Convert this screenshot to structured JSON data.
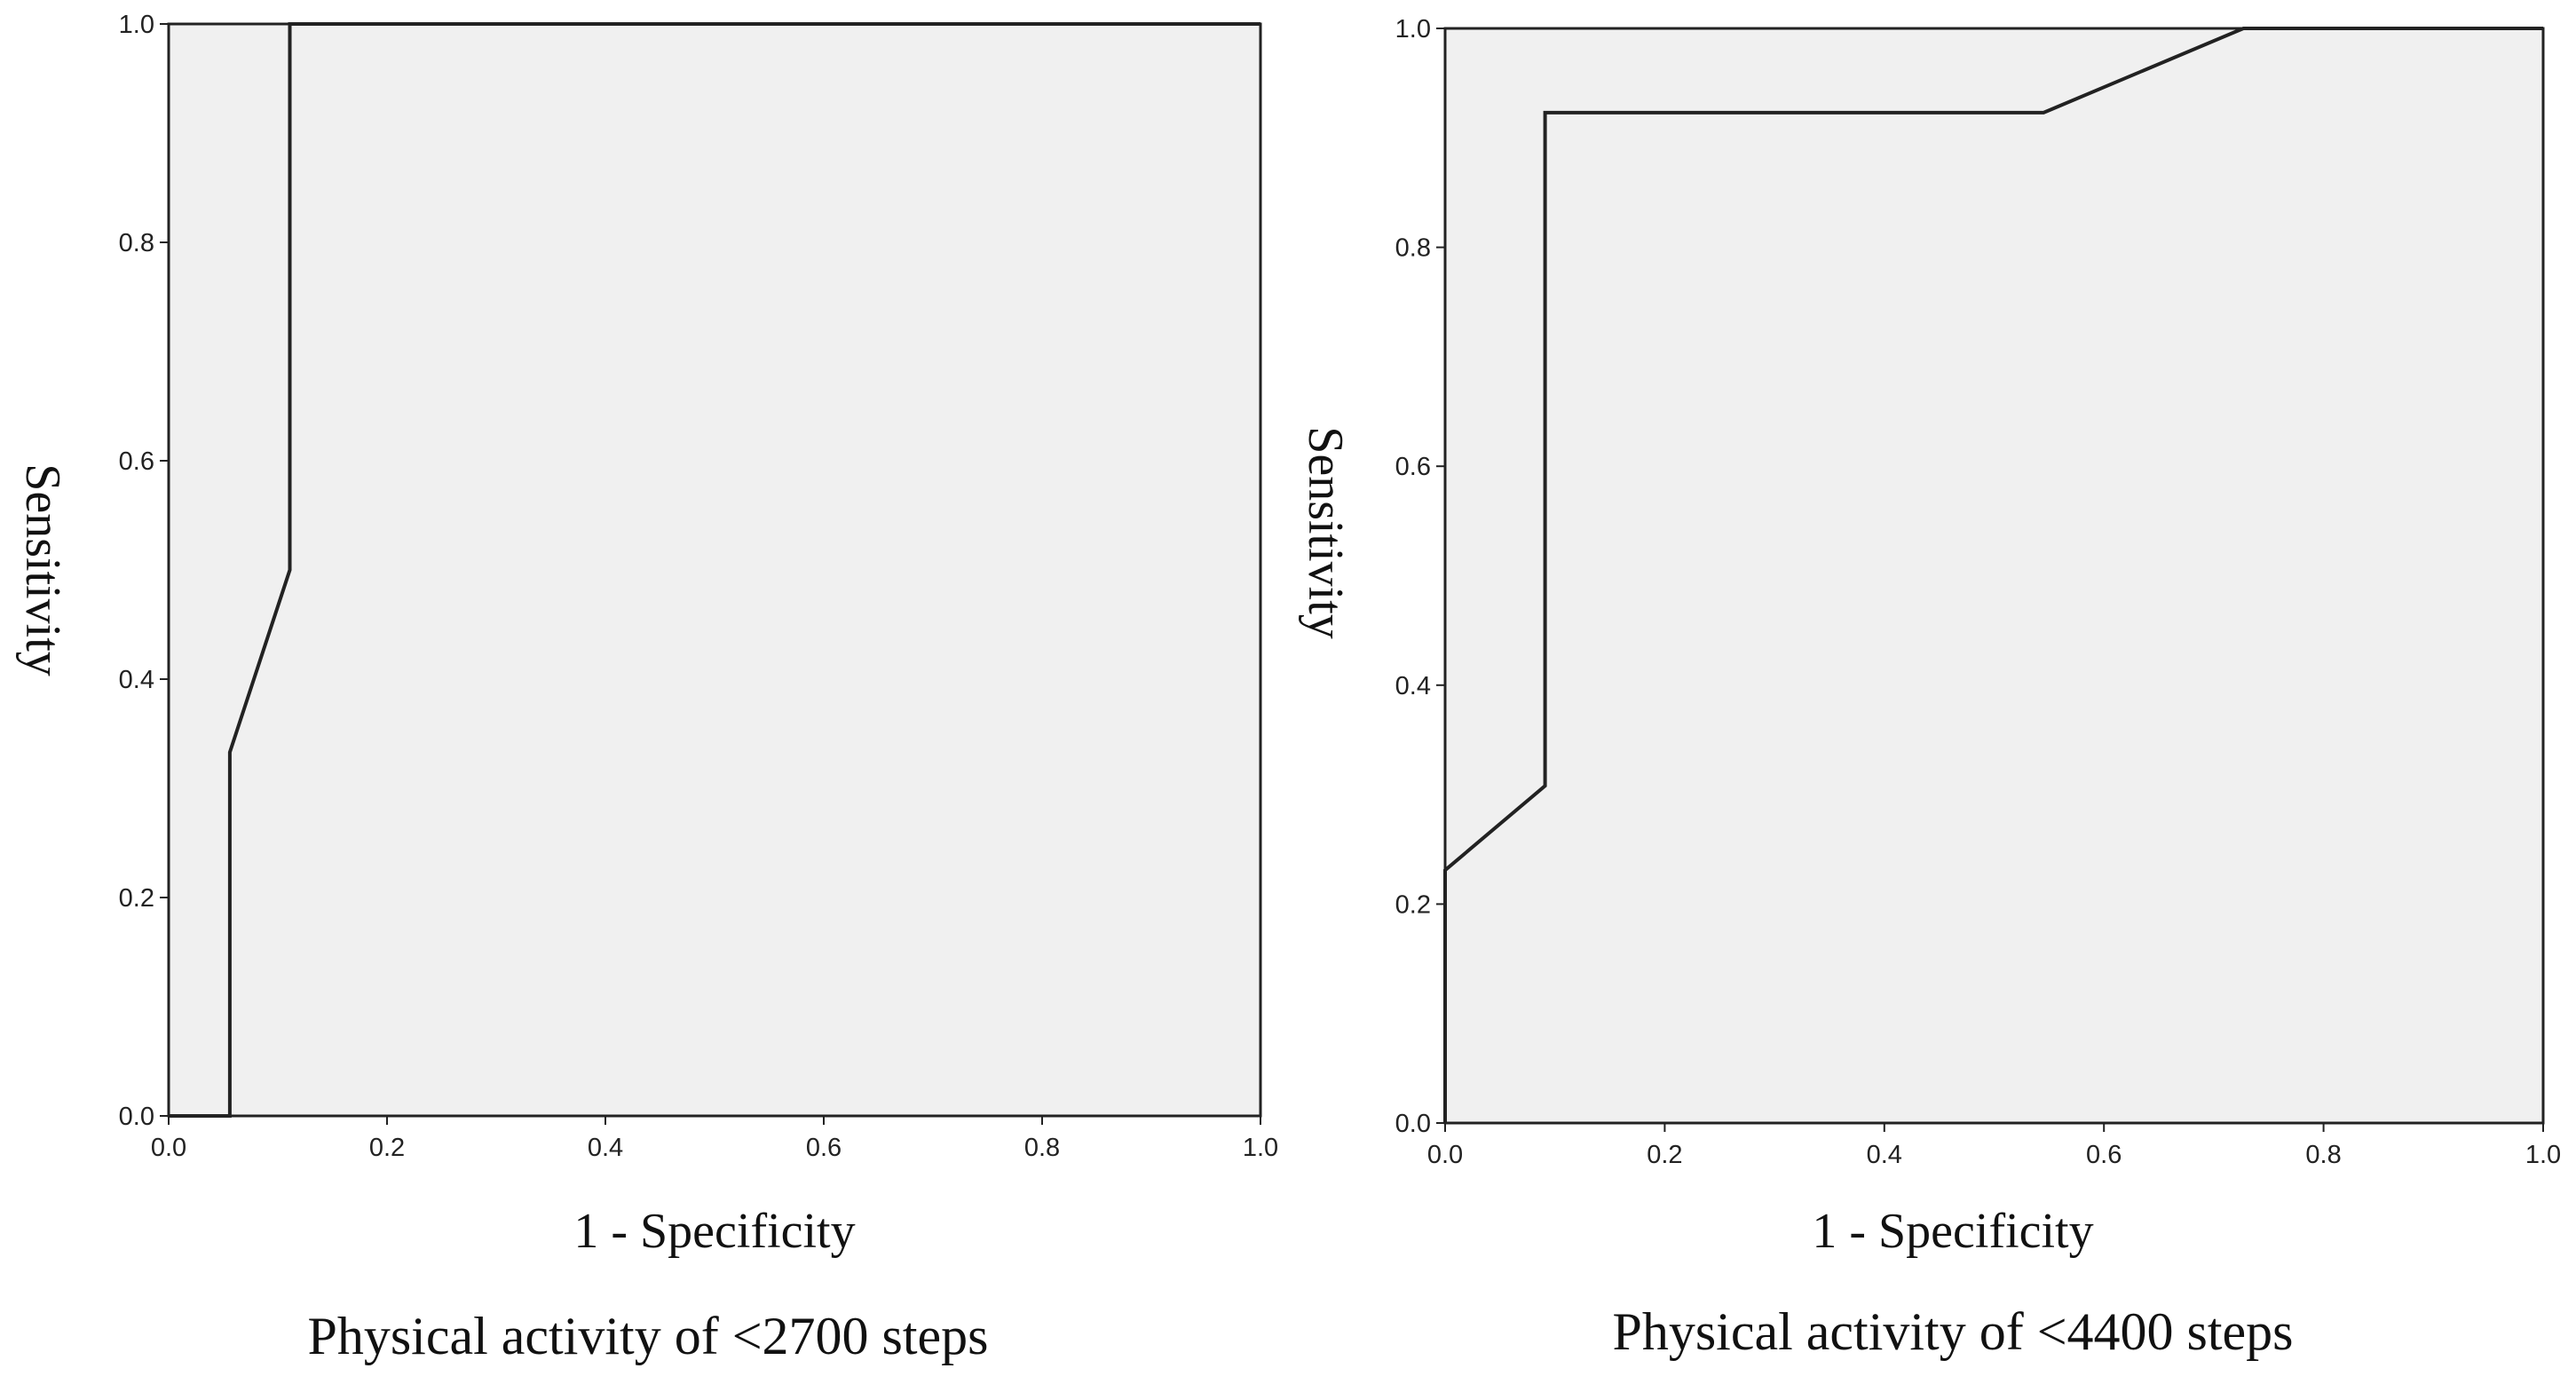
{
  "chart_data": [
    {
      "type": "line",
      "xlabel": "1 - Specificity",
      "ylabel": "Sensitivity",
      "caption": "Physical activity of <2700 steps",
      "xlim": [
        0,
        1
      ],
      "ylim": [
        0,
        1
      ],
      "xticks": [
        "0.0",
        "0.2",
        "0.4",
        "0.6",
        "0.8",
        "1.0"
      ],
      "yticks": [
        "0.0",
        "0.2",
        "0.4",
        "0.6",
        "0.8",
        "1.0"
      ],
      "grid": false,
      "series": [
        {
          "x": [
            0,
            0.056,
            0.056,
            0.111,
            0.111,
            1.0
          ],
          "y": [
            0,
            0,
            0.333,
            0.5,
            1.0,
            1.0
          ]
        }
      ]
    },
    {
      "type": "line",
      "xlabel": "1 - Specificity",
      "ylabel": "Sensitivity",
      "caption": "Physical activity of <4400 steps",
      "xlim": [
        0,
        1
      ],
      "ylim": [
        0,
        1
      ],
      "xticks": [
        "0.0",
        "0.2",
        "0.4",
        "0.6",
        "0.8",
        "1.0"
      ],
      "yticks": [
        "0.0",
        "0.2",
        "0.4",
        "0.6",
        "0.8",
        "1.0"
      ],
      "grid": false,
      "series": [
        {
          "x": [
            0,
            0,
            0.091,
            0.091,
            0.545,
            0.727,
            1.0
          ],
          "y": [
            0,
            0.231,
            0.308,
            0.923,
            0.923,
            1.0,
            1.0
          ]
        }
      ]
    }
  ]
}
